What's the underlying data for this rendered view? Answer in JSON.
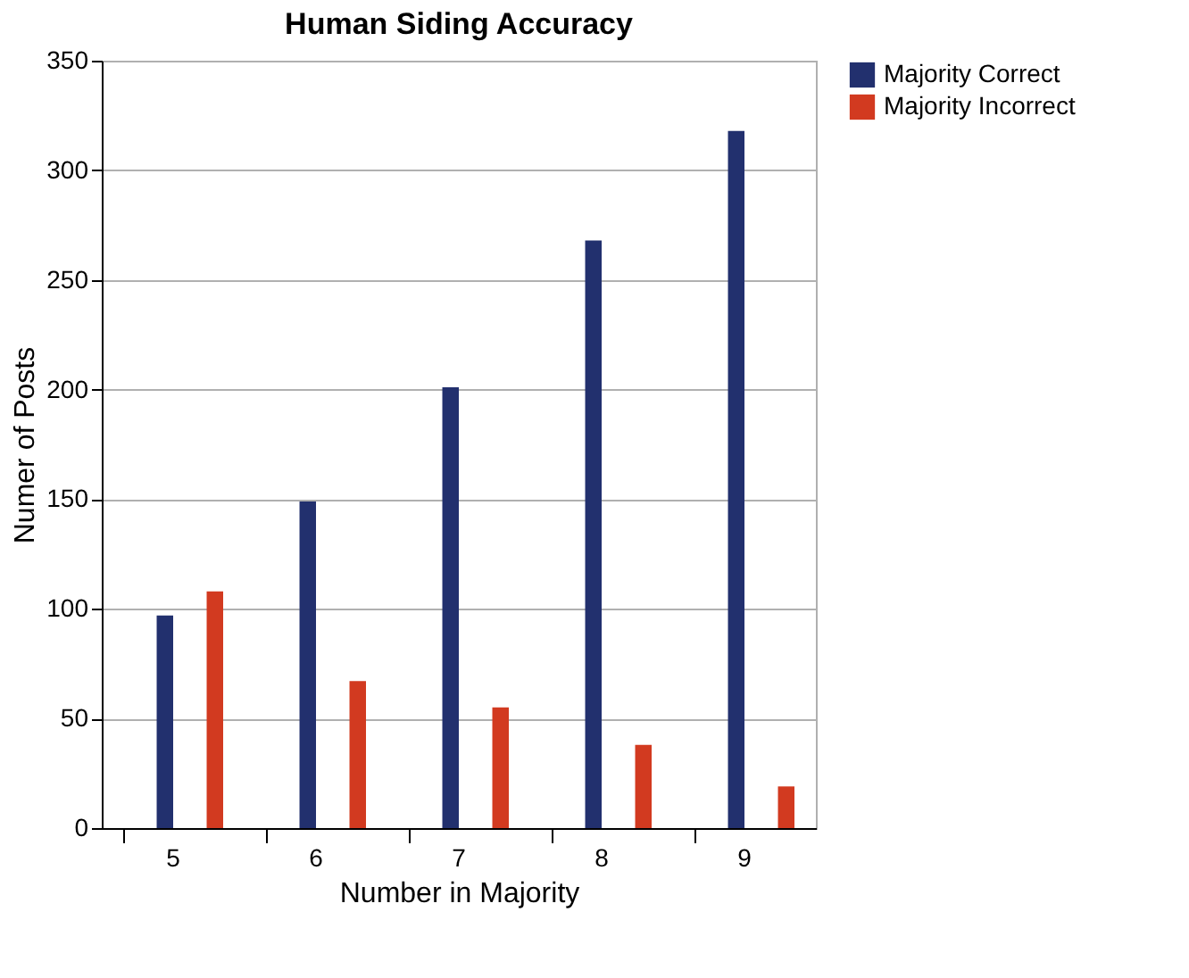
{
  "chart_data": {
    "type": "bar",
    "title": "Human Siding Accuracy",
    "xlabel": "Number in Majority",
    "ylabel": "Numer of Posts",
    "categories": [
      "5",
      "6",
      "7",
      "8",
      "9"
    ],
    "series": [
      {
        "name": "Majority Correct",
        "color": "#22306e",
        "values": [
          97,
          149,
          201,
          268,
          318
        ]
      },
      {
        "name": "Majority Incorrect",
        "color": "#d23a20",
        "values": [
          108,
          67,
          55,
          38,
          19
        ]
      }
    ],
    "ylim": [
      0,
      350
    ],
    "yticks": [
      0,
      50,
      100,
      150,
      200,
      250,
      300,
      350
    ],
    "grid": "y",
    "legend": "right"
  }
}
